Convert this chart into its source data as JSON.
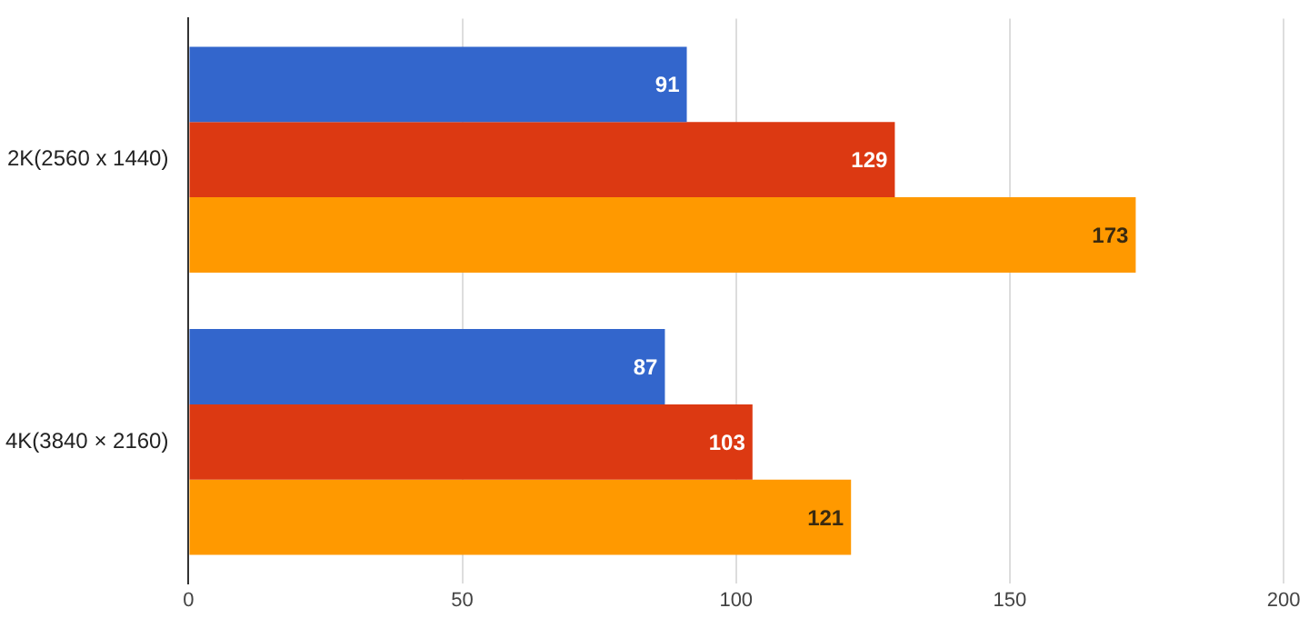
{
  "chart_data": {
    "type": "bar",
    "orientation": "horizontal",
    "categories": [
      "2K(2560 x 1440)",
      "4K(3840 × 2160)"
    ],
    "series": [
      {
        "color": "#3366cc",
        "values": [
          91,
          87
        ]
      },
      {
        "color": "#dc3912",
        "values": [
          129,
          103
        ]
      },
      {
        "color": "#ff9900",
        "values": [
          173,
          121
        ]
      }
    ],
    "xlim": [
      0,
      200
    ],
    "xticks": [
      0,
      50,
      100,
      150,
      200
    ],
    "grid": "x",
    "legend": false,
    "data_labels": true
  }
}
